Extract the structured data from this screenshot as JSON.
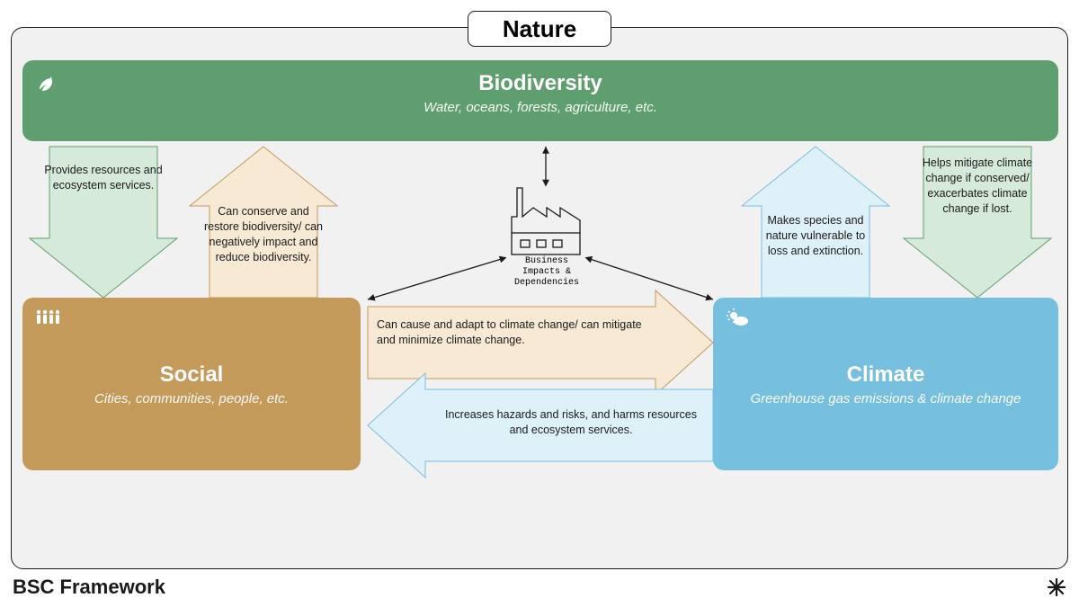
{
  "type": "flowchart",
  "title": "Nature",
  "footer": "BSC Framework",
  "background_color": "#f1f1f1",
  "border_color": "#1a1a1a",
  "text_color": "#1a1a1a",
  "nodes": {
    "biodiversity": {
      "title": "Biodiversity",
      "subtitle": "Water, oceans, forests, agriculture, etc.",
      "color": "#5f9e6e",
      "icon": "leaf"
    },
    "social": {
      "title": "Social",
      "subtitle": "Cities, communities, people, etc.",
      "color": "#c49a5a",
      "icon": "people"
    },
    "climate": {
      "title": "Climate",
      "subtitle": "Greenhouse gas emissions & climate change",
      "color": "#76bfdf",
      "icon": "sun-cloud"
    },
    "business": {
      "label": "Business\nImpacts &\nDependencies",
      "icon": "factory"
    }
  },
  "arrows": {
    "bio_to_social": {
      "direction": "down",
      "text": "Provides resources and ecosystem services.",
      "fill": "#d5eadb",
      "stroke": "#5f9e6e"
    },
    "social_to_bio": {
      "direction": "up",
      "text": "Can conserve and restore biodiversity/ can negatively impact and reduce biodiversity.",
      "fill": "#f7e9d4",
      "stroke": "#c49a5a"
    },
    "climate_to_bio": {
      "direction": "up",
      "text": "Makes species and nature vulnerable to loss and extinction.",
      "fill": "#dff1f8",
      "stroke": "#76bfdf"
    },
    "bio_to_climate": {
      "direction": "down",
      "text": "Helps mitigate climate change if conserved/ exacerbates climate change if lost.",
      "fill": "#d5eadb",
      "stroke": "#5f9e6e"
    },
    "social_to_climate": {
      "direction": "right",
      "text": "Can cause and adapt to climate change/ can mitigate and minimize climate change.",
      "fill": "#f7e9d4",
      "stroke": "#c49a5a"
    },
    "climate_to_social": {
      "direction": "left",
      "text": "Increases hazards and risks, and harms resources and ecosystem services.",
      "fill": "#dff1f8",
      "stroke": "#76bfdf"
    }
  }
}
